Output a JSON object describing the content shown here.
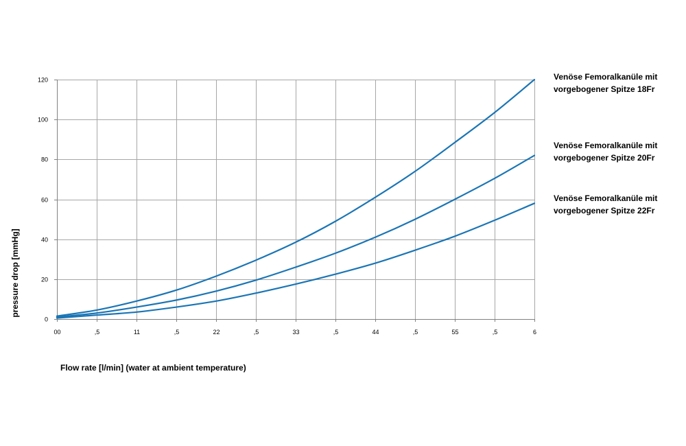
{
  "chart_data": {
    "type": "line",
    "xlabel": "Flow rate [l/min] (water at ambient temperature)",
    "ylabel": "pressure drop [mmHg]",
    "x_tick_labels": [
      "00",
      ",5",
      "11",
      ",5",
      "22",
      ",5",
      "33",
      ",5",
      "44",
      ",5",
      "55",
      ",5",
      "6"
    ],
    "y_ticks": [
      0,
      20,
      40,
      60,
      80,
      100,
      120
    ],
    "xlim": [
      0,
      6
    ],
    "ylim": [
      0,
      120
    ],
    "grid": true,
    "line_color": "#1a75b5",
    "series": [
      {
        "name": "Venöse Femoralkanüle mit vorgebogener Spitze 18Fr",
        "x": [
          0,
          0.5,
          1,
          1.5,
          2,
          2.5,
          3,
          3.5,
          4,
          4.5,
          5,
          5.5,
          6
        ],
        "y": [
          1.5,
          4.5,
          9,
          14.5,
          21.5,
          29.5,
          38.5,
          49,
          61,
          74,
          88.5,
          103.5,
          120
        ]
      },
      {
        "name": "Venöse Femoralkanüle mit vorgebogener Spitze 20Fr",
        "x": [
          0,
          0.5,
          1,
          1.5,
          2,
          2.5,
          3,
          3.5,
          4,
          4.5,
          5,
          5.5,
          6
        ],
        "y": [
          1,
          3,
          6,
          9.5,
          14,
          19.5,
          26,
          33,
          41,
          50,
          60,
          70.5,
          82
        ]
      },
      {
        "name": "Venöse Femoralkanüle mit vorgebogener Spitze 22Fr",
        "x": [
          0,
          0.5,
          1,
          1.5,
          2,
          2.5,
          3,
          3.5,
          4,
          4.5,
          5,
          5.5,
          6
        ],
        "y": [
          0.5,
          2,
          3.5,
          6,
          9,
          13,
          17.5,
          22.5,
          28,
          34.5,
          41.5,
          49.5,
          58
        ]
      }
    ]
  }
}
